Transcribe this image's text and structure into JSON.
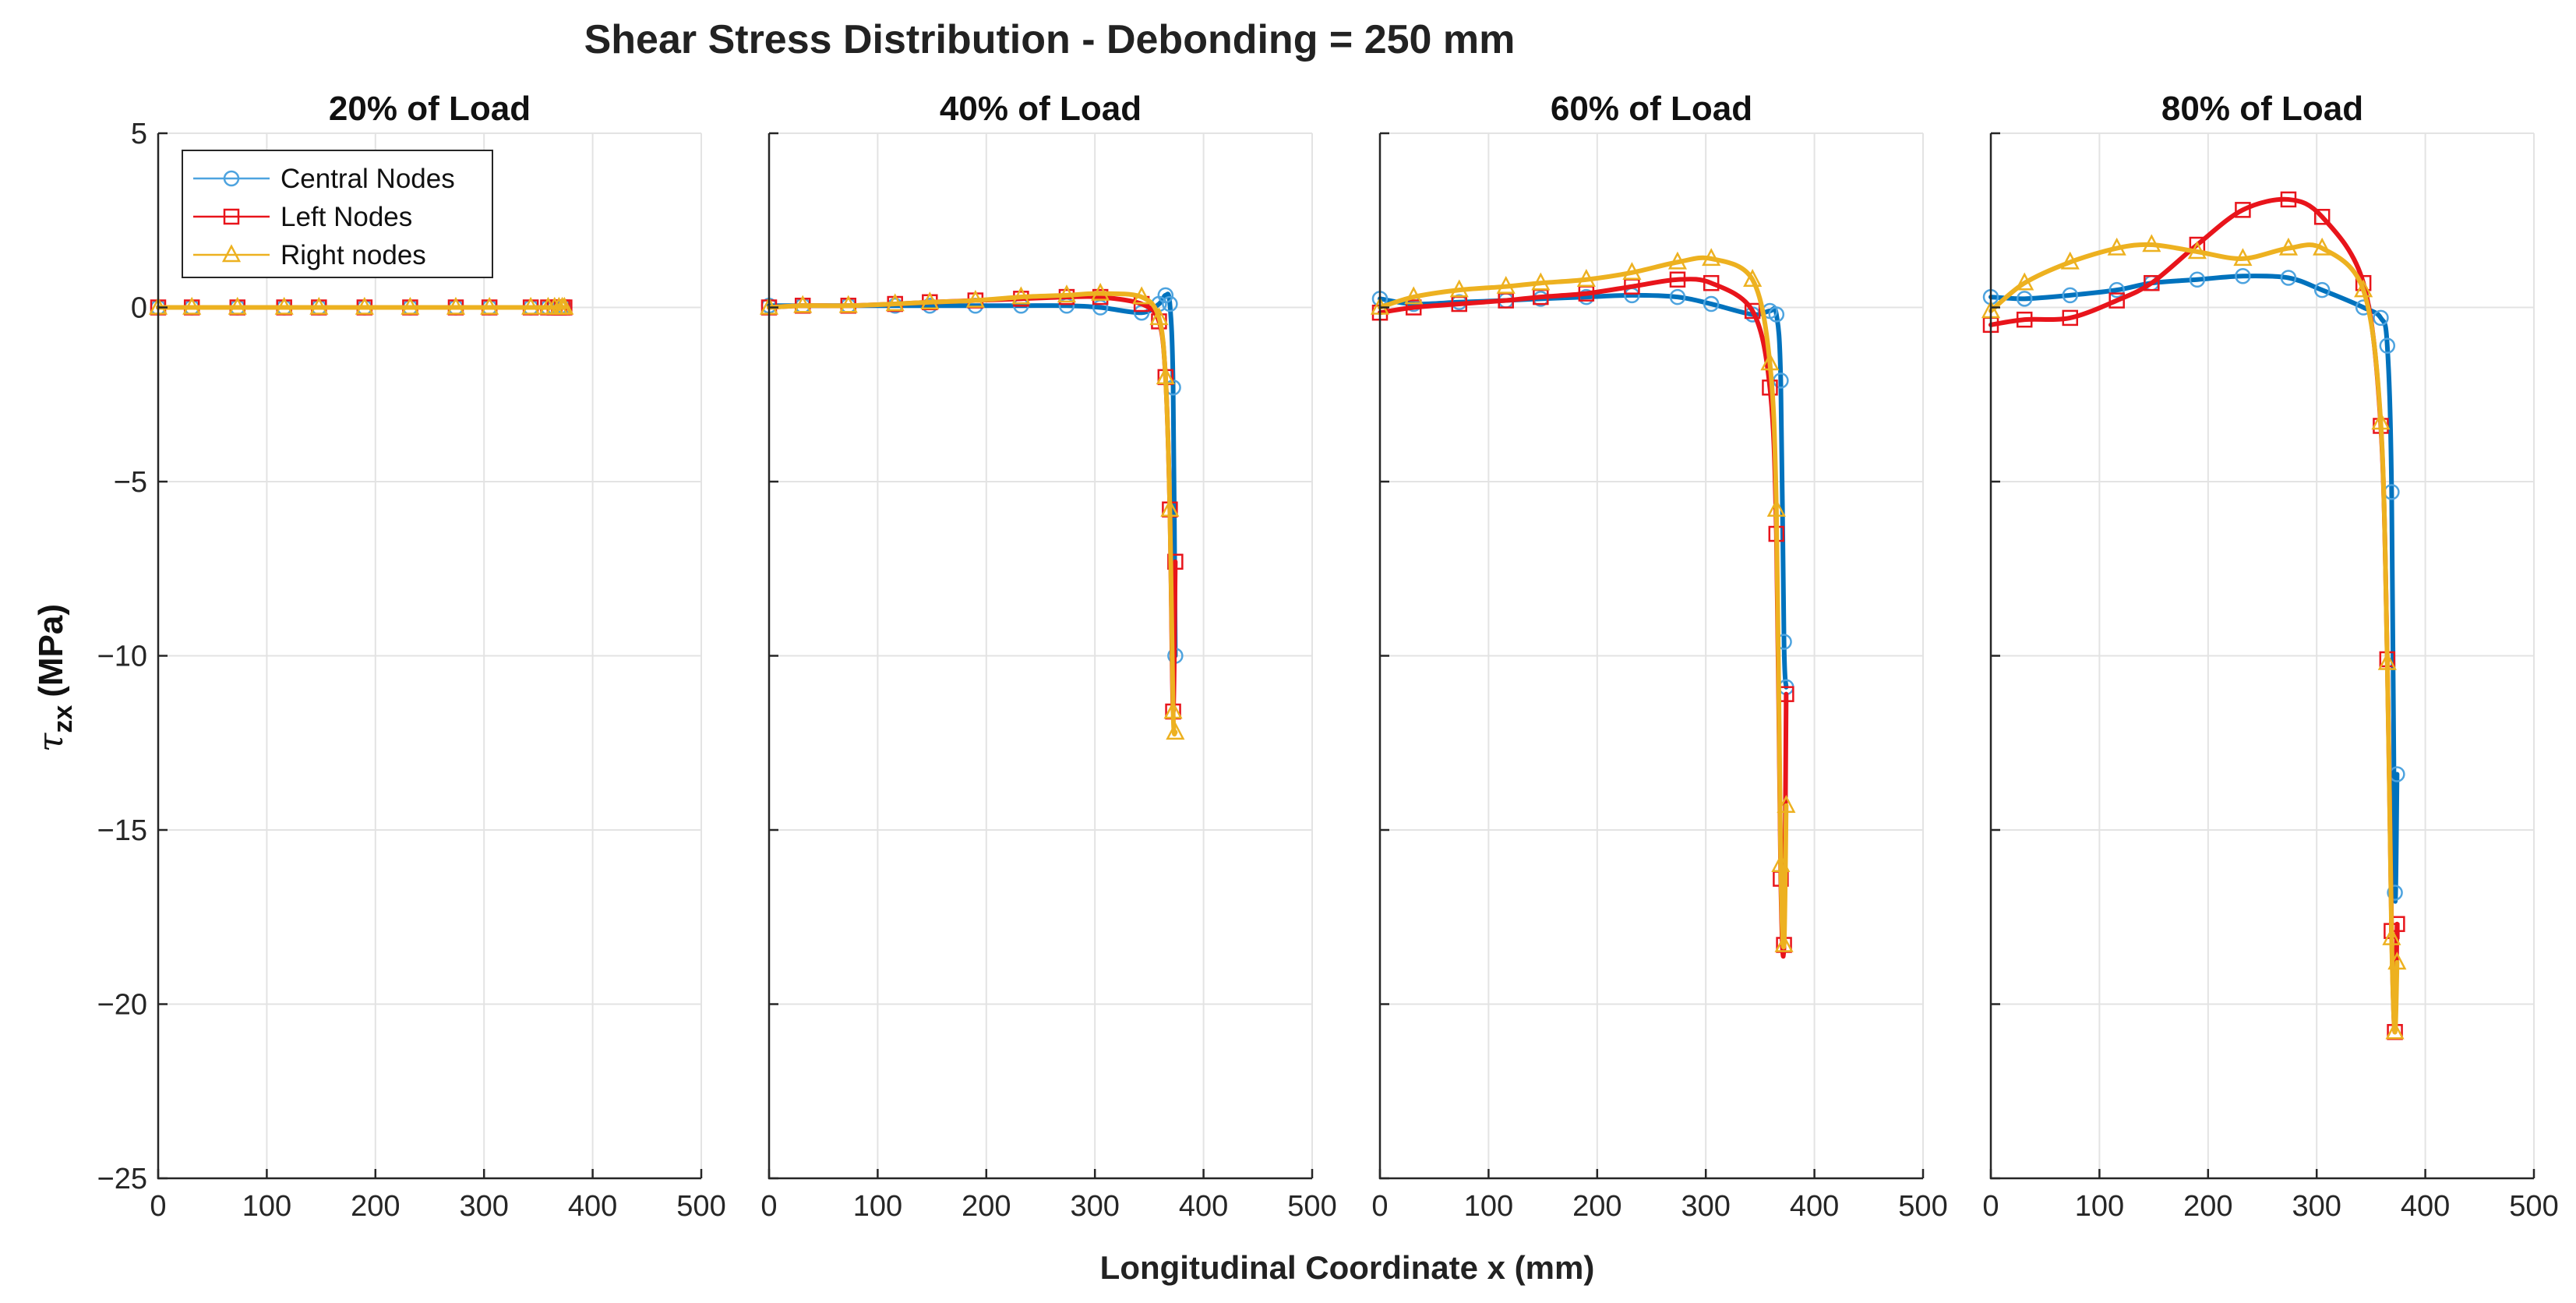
{
  "chart_data": {
    "type": "line",
    "title": "Shear Stress Distribution - Debonding = 250 mm",
    "xlabel": "Longitudinal Coordinate x (mm)",
    "ylabel": "τzx (MPa)",
    "ylabel_symbol": "τ",
    "ylabel_subscript": "zx",
    "ylabel_unit": "(MPa)",
    "xlim": [
      0,
      500
    ],
    "ylim": [
      -25,
      5
    ],
    "xticks": [
      0,
      100,
      200,
      300,
      400,
      500
    ],
    "yticks": [
      5,
      0,
      -5,
      -10,
      -15,
      -20,
      -25
    ],
    "ytick_labels": [
      "5",
      "0",
      "−5",
      "−10",
      "−15",
      "−20",
      "−25"
    ],
    "grid": true,
    "legend": {
      "location": "top-left",
      "entries": [
        "Central Nodes",
        "Left Nodes",
        "Right nodes"
      ]
    },
    "series_styles": [
      {
        "name": "Central Nodes",
        "marker": "circle",
        "color": "#0072BD",
        "marker_color": "#4DA3DF"
      },
      {
        "name": "Left Nodes",
        "marker": "square",
        "color": "#E8141B",
        "marker_color": "#E8141B"
      },
      {
        "name": "Right nodes",
        "marker": "triangle",
        "color": "#EDB120",
        "marker_color": "#EDB120"
      }
    ],
    "panels": [
      {
        "title": "20% of Load",
        "series": [
          {
            "name": "Central Nodes",
            "x": [
              0,
              31,
              73,
              116,
              148,
              190,
              232,
              274,
              305,
              343,
              359,
              365,
              369,
              372,
              374
            ],
            "y": [
              0,
              0,
              0,
              0,
              0,
              0,
              0,
              0,
              0,
              0,
              0,
              0,
              0,
              0,
              0
            ]
          },
          {
            "name": "Left Nodes",
            "x": [
              0,
              31,
              73,
              116,
              148,
              190,
              232,
              274,
              305,
              343,
              359,
              365,
              369,
              372,
              374
            ],
            "y": [
              0,
              0,
              0,
              0,
              0,
              0,
              0,
              0,
              0,
              0,
              0,
              0,
              0,
              0,
              0
            ]
          },
          {
            "name": "Right nodes",
            "x": [
              0,
              31,
              73,
              116,
              148,
              190,
              232,
              274,
              305,
              343,
              359,
              365,
              369,
              372,
              374
            ],
            "y": [
              0,
              0,
              0,
              0,
              0,
              0,
              0,
              0,
              0,
              0,
              0,
              0,
              0,
              0,
              0
            ]
          }
        ]
      },
      {
        "title": "40% of Load",
        "series": [
          {
            "name": "Central Nodes",
            "x": [
              0,
              31,
              73,
              116,
              148,
              190,
              232,
              274,
              305,
              343,
              359,
              365,
              369,
              372,
              374
            ],
            "y": [
              0.05,
              0.05,
              0.05,
              0.05,
              0.05,
              0.05,
              0.05,
              0.05,
              0.0,
              -0.15,
              0.1,
              0.35,
              0.1,
              -2.3,
              -10.0
            ]
          },
          {
            "name": "Left Nodes",
            "x": [
              0,
              31,
              73,
              116,
              148,
              190,
              232,
              274,
              305,
              343,
              359,
              365,
              369,
              372,
              374
            ],
            "y": [
              0.0,
              0.05,
              0.05,
              0.1,
              0.15,
              0.2,
              0.25,
              0.3,
              0.3,
              0.1,
              -0.4,
              -2.0,
              -5.8,
              -11.6,
              -7.3
            ]
          },
          {
            "name": "Right nodes",
            "x": [
              0,
              31,
              73,
              116,
              148,
              190,
              232,
              274,
              305,
              343,
              359,
              365,
              369,
              372,
              374
            ],
            "y": [
              0.0,
              0.05,
              0.05,
              0.1,
              0.15,
              0.2,
              0.3,
              0.35,
              0.4,
              0.3,
              -0.3,
              -2.0,
              -5.8,
              -11.6,
              -12.2
            ]
          }
        ]
      },
      {
        "title": "60% of Load",
        "series": [
          {
            "name": "Central Nodes",
            "x": [
              0,
              31,
              73,
              116,
              148,
              190,
              232,
              274,
              305,
              343,
              359,
              365,
              369,
              372,
              374
            ],
            "y": [
              0.25,
              0.1,
              0.15,
              0.2,
              0.25,
              0.3,
              0.35,
              0.3,
              0.1,
              -0.2,
              -0.1,
              -0.2,
              -2.1,
              -9.6,
              -10.9
            ]
          },
          {
            "name": "Left Nodes",
            "x": [
              0,
              31,
              73,
              116,
              148,
              190,
              232,
              274,
              305,
              343,
              359,
              365,
              369,
              372,
              374
            ],
            "y": [
              -0.15,
              0.0,
              0.1,
              0.2,
              0.3,
              0.4,
              0.6,
              0.8,
              0.7,
              -0.1,
              -2.3,
              -6.5,
              -16.4,
              -18.3,
              -11.1
            ]
          },
          {
            "name": "Right nodes",
            "x": [
              0,
              31,
              73,
              116,
              148,
              190,
              232,
              274,
              305,
              343,
              359,
              365,
              369,
              372,
              374
            ],
            "y": [
              0.0,
              0.3,
              0.5,
              0.6,
              0.7,
              0.8,
              1.0,
              1.3,
              1.4,
              0.8,
              -1.6,
              -5.8,
              -16.0,
              -18.3,
              -14.3
            ]
          }
        ]
      },
      {
        "title": "80% of Load",
        "series": [
          {
            "name": "Central Nodes",
            "x": [
              0,
              31,
              73,
              116,
              148,
              190,
              232,
              274,
              305,
              343,
              359,
              365,
              369,
              372,
              374
            ],
            "y": [
              0.3,
              0.25,
              0.35,
              0.5,
              0.7,
              0.8,
              0.9,
              0.85,
              0.5,
              0.0,
              -0.3,
              -1.1,
              -5.3,
              -16.8,
              -13.4
            ]
          },
          {
            "name": "Left Nodes",
            "x": [
              0,
              31,
              73,
              116,
              148,
              190,
              232,
              274,
              305,
              343,
              359,
              365,
              369,
              372,
              374
            ],
            "y": [
              -0.5,
              -0.35,
              -0.3,
              0.2,
              0.7,
              1.8,
              2.8,
              3.1,
              2.6,
              0.7,
              -3.4,
              -10.1,
              -17.9,
              -20.8,
              -17.7
            ]
          },
          {
            "name": "Right nodes",
            "x": [
              0,
              31,
              73,
              116,
              148,
              190,
              232,
              274,
              305,
              343,
              359,
              365,
              369,
              372,
              374
            ],
            "y": [
              -0.1,
              0.7,
              1.3,
              1.7,
              1.8,
              1.6,
              1.4,
              1.7,
              1.7,
              0.5,
              -3.3,
              -10.2,
              -18.1,
              -20.8,
              -18.8
            ]
          }
        ]
      }
    ]
  }
}
